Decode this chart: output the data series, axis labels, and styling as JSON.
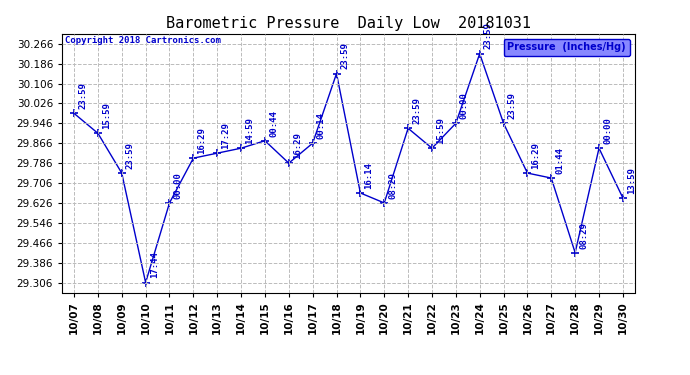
{
  "title": "Barometric Pressure  Daily Low  20181031",
  "copyright": "Copyright 2018 Cartronics.com",
  "legend_label": "Pressure  (Inches/Hg)",
  "x_labels": [
    "10/07",
    "10/08",
    "10/09",
    "10/10",
    "10/11",
    "10/12",
    "10/13",
    "10/14",
    "10/15",
    "10/16",
    "10/17",
    "10/18",
    "10/19",
    "10/20",
    "10/21",
    "10/22",
    "10/23",
    "10/24",
    "10/25",
    "10/26",
    "10/27",
    "10/28",
    "10/29",
    "10/30"
  ],
  "y_values": [
    29.986,
    29.906,
    29.746,
    29.306,
    29.626,
    29.806,
    29.826,
    29.846,
    29.876,
    29.786,
    29.866,
    30.146,
    29.666,
    29.626,
    29.926,
    29.846,
    29.946,
    30.226,
    29.946,
    29.746,
    29.726,
    29.426,
    29.846,
    29.646
  ],
  "time_labels": [
    "23:59",
    "15:59",
    "23:59",
    "17:44",
    "00:00",
    "16:29",
    "17:29",
    "14:59",
    "00:44",
    "16:29",
    "00:14",
    "23:59",
    "16:14",
    "08:29",
    "23:59",
    "15:59",
    "00:00",
    "23:59",
    "23:59",
    "16:29",
    "01:44",
    "08:29",
    "00:00",
    "13:59"
  ],
  "ylim_min": 29.266,
  "ylim_max": 30.306,
  "y_tick_start": 29.306,
  "y_tick_end": 30.266,
  "y_tick_step": 0.08,
  "line_color": "#0000CC",
  "background_color": "#ffffff",
  "grid_color": "#bbbbbb",
  "title_fontsize": 11,
  "tick_fontsize": 7.5,
  "anno_fontsize": 6.5,
  "legend_facecolor": "#8888ff"
}
